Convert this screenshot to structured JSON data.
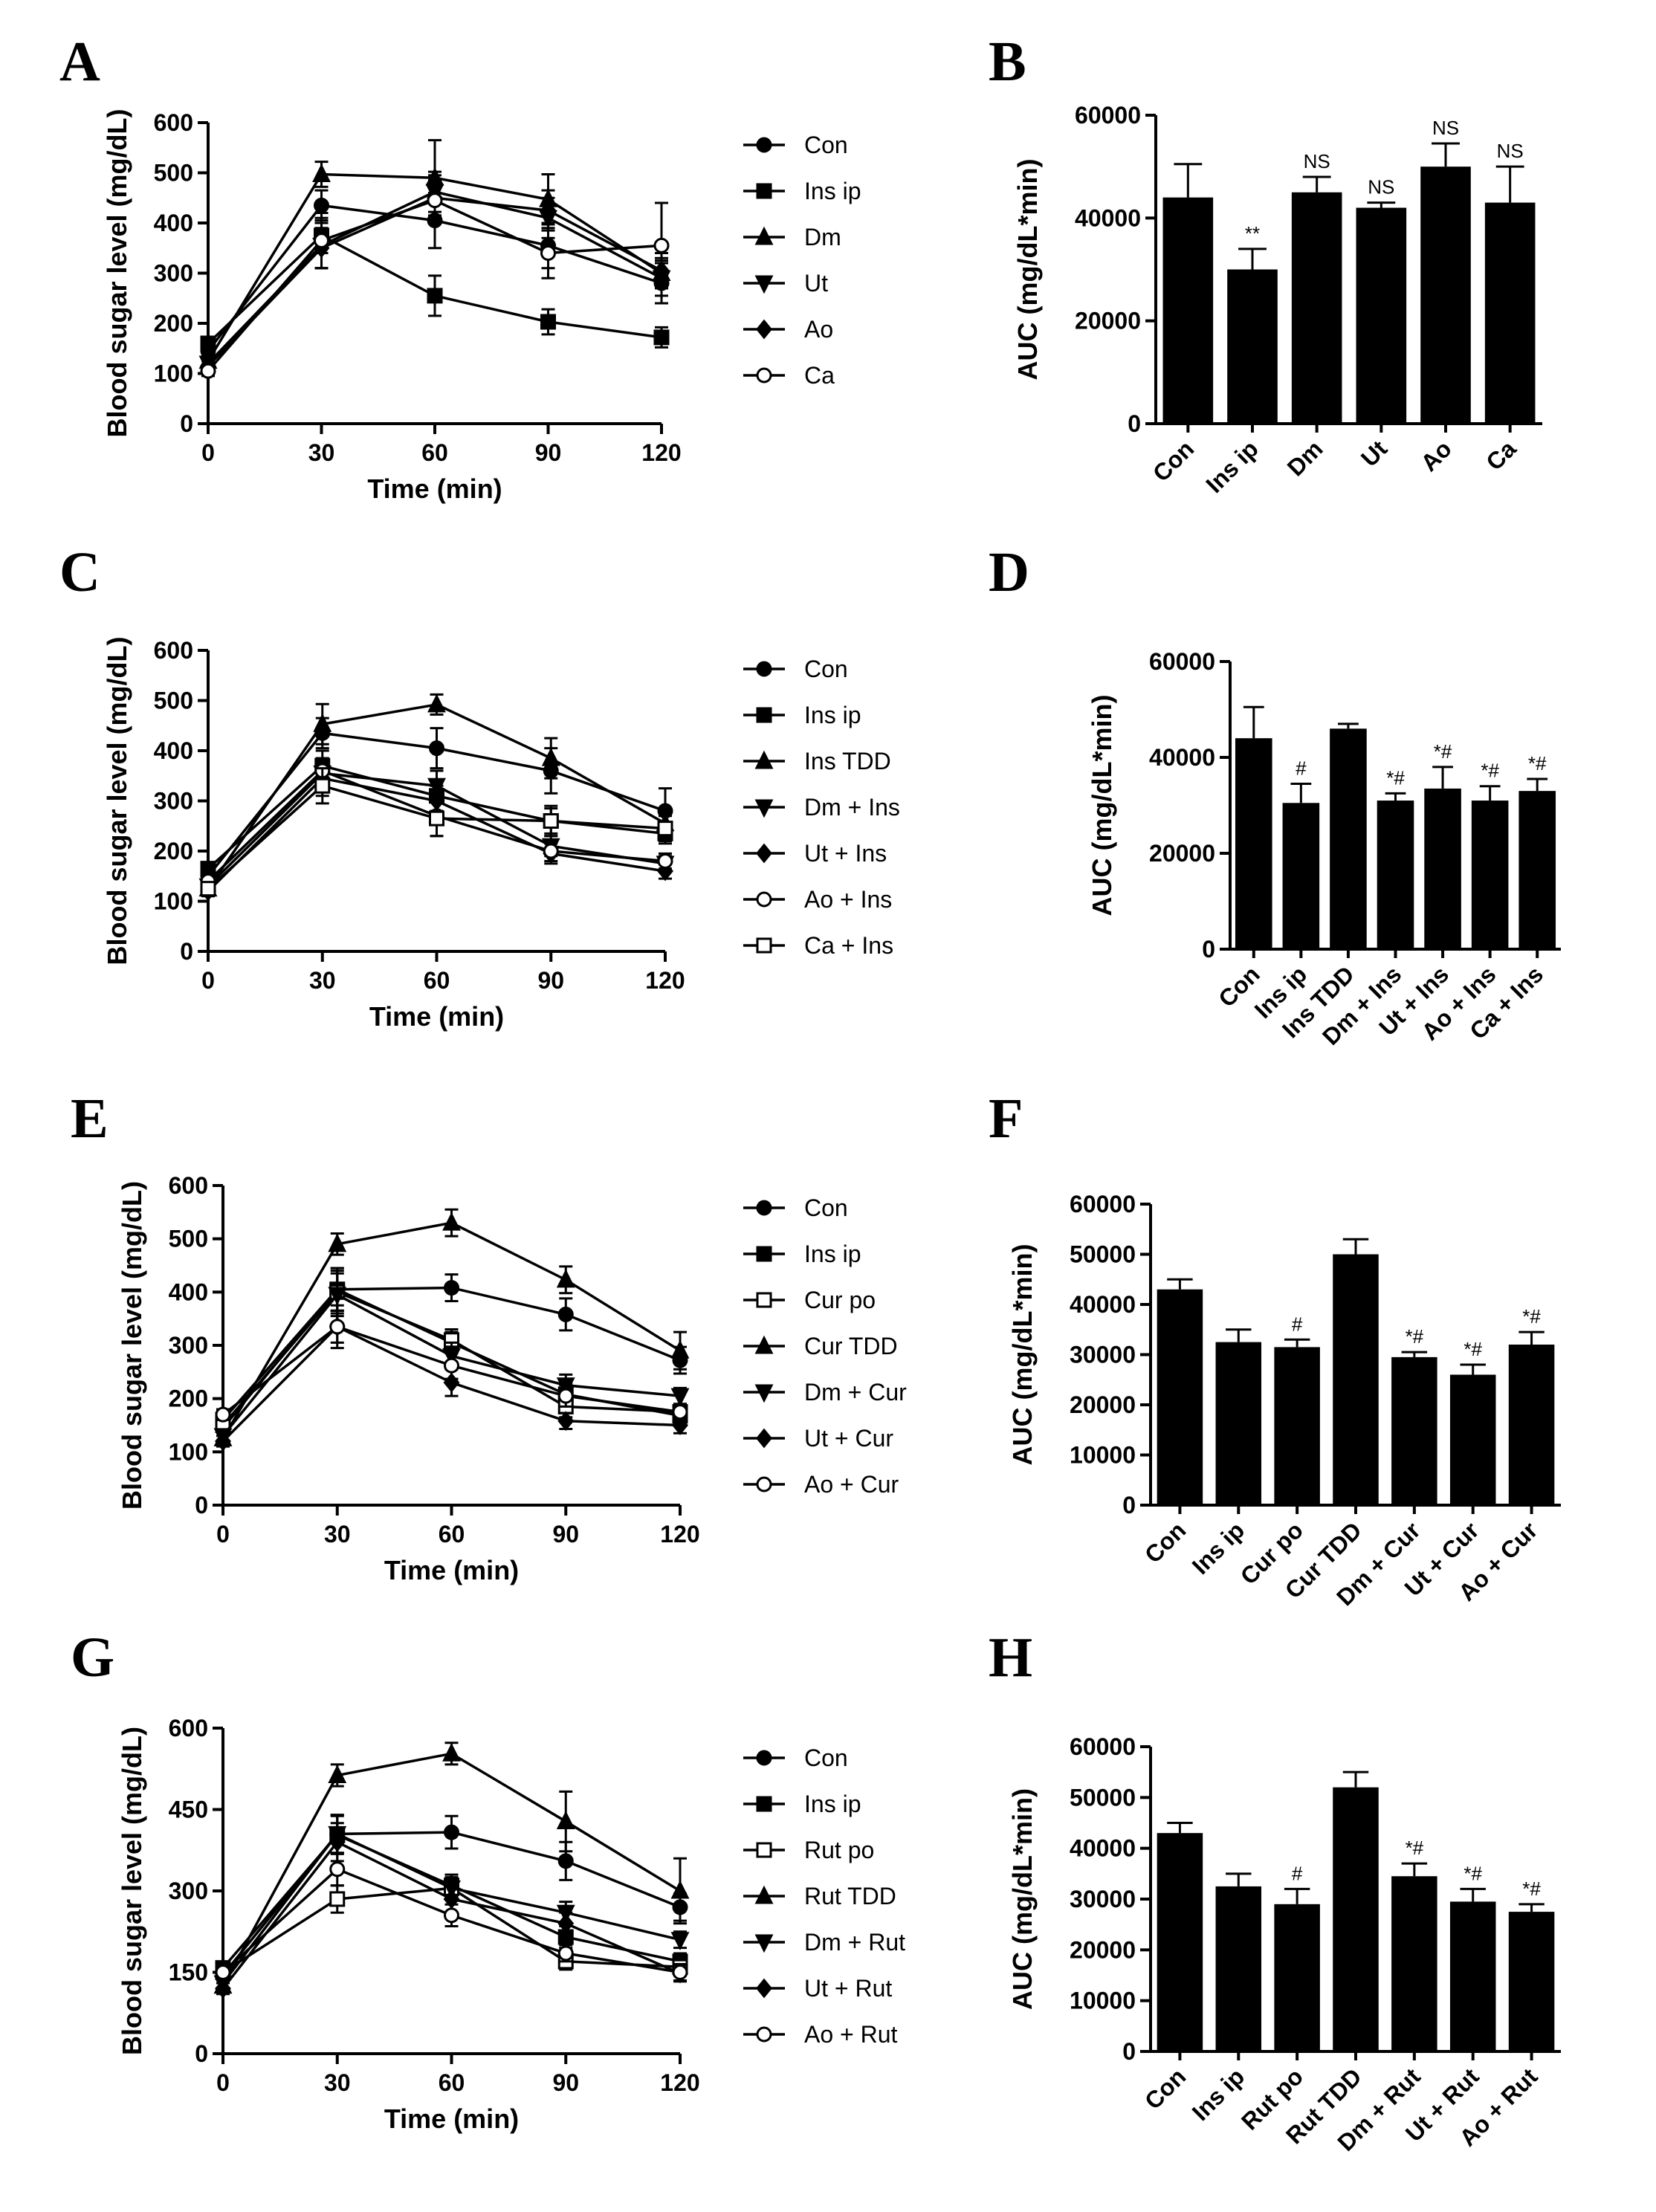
{
  "chart_data": [
    {
      "id": "A",
      "type": "line",
      "panel_label": "A",
      "xlabel": "Time (min)",
      "ylabel": "Blood sugar level (mg/dL)",
      "x": [
        0,
        30,
        60,
        90,
        120
      ],
      "xlim": [
        0,
        120
      ],
      "ylim": [
        0,
        600
      ],
      "xticks": [
        0,
        30,
        60,
        90,
        120
      ],
      "yticks": [
        0,
        100,
        200,
        300,
        400,
        500,
        600
      ],
      "series": [
        {
          "name": "Con",
          "marker": "circle",
          "values": [
            145,
            435,
            405,
            355,
            280
          ],
          "errors": [
            10,
            30,
            55,
            45,
            40
          ]
        },
        {
          "name": "Ins ip",
          "marker": "square",
          "values": [
            160,
            375,
            255,
            203,
            172
          ],
          "errors": [
            12,
            35,
            40,
            25,
            20
          ]
        },
        {
          "name": "Dm",
          "marker": "triangle-up",
          "values": [
            125,
            497,
            490,
            447,
            300
          ],
          "errors": [
            10,
            25,
            75,
            50,
            30
          ]
        },
        {
          "name": "Ut",
          "marker": "triangle-down",
          "values": [
            120,
            355,
            462,
            410,
            290
          ],
          "errors": [
            10,
            45,
            40,
            40,
            35
          ]
        },
        {
          "name": "Ao",
          "marker": "diamond",
          "values": [
            115,
            350,
            450,
            425,
            305
          ],
          "errors": [
            10,
            40,
            45,
            40,
            35
          ]
        },
        {
          "name": "Ca",
          "marker": "circle-open",
          "values": [
            105,
            365,
            445,
            340,
            355
          ],
          "errors": [
            10,
            55,
            40,
            50,
            85
          ]
        }
      ]
    },
    {
      "id": "B",
      "type": "bar",
      "panel_label": "B",
      "ylabel": "AUC (mg/dL*min)",
      "ylim": [
        0,
        60000
      ],
      "yticks": [
        0,
        20000,
        40000,
        60000
      ],
      "categories": [
        "Con",
        "Ins ip",
        "Dm",
        "Ut",
        "Ao",
        "Ca"
      ],
      "values": [
        44000,
        30000,
        45000,
        42000,
        50000,
        43000
      ],
      "errors": [
        6500,
        4000,
        3000,
        1000,
        4500,
        7000
      ],
      "annotations": [
        "",
        "**",
        "NS",
        "NS",
        "NS",
        "NS"
      ]
    },
    {
      "id": "C",
      "type": "line",
      "panel_label": "C",
      "xlabel": "Time (min)",
      "ylabel": "Blood sugar level (mg/dL)",
      "x": [
        0,
        30,
        60,
        90,
        120
      ],
      "xlim": [
        0,
        120
      ],
      "ylim": [
        0,
        600
      ],
      "xticks": [
        0,
        30,
        60,
        90,
        120
      ],
      "yticks": [
        0,
        100,
        200,
        300,
        400,
        500,
        600
      ],
      "series": [
        {
          "name": "Con",
          "marker": "circle",
          "values": [
            150,
            435,
            405,
            360,
            280
          ],
          "errors": [
            10,
            30,
            40,
            45,
            45
          ]
        },
        {
          "name": "Ins ip",
          "marker": "square",
          "values": [
            165,
            370,
            310,
            260,
            235
          ],
          "errors": [
            10,
            30,
            30,
            25,
            20
          ]
        },
        {
          "name": "Ins TDD",
          "marker": "triangle-up",
          "values": [
            125,
            453,
            492,
            385,
            255
          ],
          "errors": [
            10,
            40,
            20,
            40,
            25
          ]
        },
        {
          "name": "Dm + Ins",
          "marker": "triangle-down",
          "values": [
            130,
            355,
            330,
            210,
            175
          ],
          "errors": [
            10,
            30,
            30,
            20,
            15
          ]
        },
        {
          "name": "Ut + Ins",
          "marker": "diamond",
          "values": [
            120,
            345,
            300,
            195,
            160
          ],
          "errors": [
            10,
            35,
            30,
            20,
            15
          ]
        },
        {
          "name": "Ao + Ins",
          "marker": "circle-open",
          "values": [
            140,
            360,
            270,
            200,
            180
          ],
          "errors": [
            10,
            25,
            40,
            20,
            15
          ]
        },
        {
          "name": "Ca + Ins",
          "marker": "square-open",
          "values": [
            125,
            330,
            265,
            260,
            245
          ],
          "errors": [
            10,
            35,
            35,
            30,
            25
          ]
        }
      ]
    },
    {
      "id": "D",
      "type": "bar",
      "panel_label": "D",
      "ylabel": "AUC (mg/dL*min)",
      "ylim": [
        0,
        60000
      ],
      "yticks": [
        0,
        20000,
        40000,
        60000
      ],
      "categories": [
        "Con",
        "Ins ip",
        "Ins TDD",
        "Dm + Ins",
        "Ut + Ins",
        "Ao + Ins",
        "Ca + Ins"
      ],
      "values": [
        44000,
        30500,
        46000,
        31000,
        33500,
        31000,
        33000
      ],
      "errors": [
        6500,
        4000,
        1000,
        1500,
        4500,
        3000,
        2500
      ],
      "annotations": [
        "",
        "#",
        "",
        "*#",
        "*#",
        "*#",
        "*#"
      ]
    },
    {
      "id": "E",
      "type": "line",
      "panel_label": "E",
      "xlabel": "Time (min)",
      "ylabel": "Blood sugar level (mg/dL)",
      "x": [
        0,
        30,
        60,
        90,
        120
      ],
      "xlim": [
        0,
        120
      ],
      "ylim": [
        0,
        600
      ],
      "xticks": [
        0,
        30,
        60,
        90,
        120
      ],
      "yticks": [
        0,
        100,
        200,
        300,
        400,
        500,
        600
      ],
      "series": [
        {
          "name": "Con",
          "marker": "circle",
          "values": [
            145,
            405,
            408,
            358,
            272
          ],
          "errors": [
            10,
            40,
            25,
            30,
            25
          ]
        },
        {
          "name": "Ins ip",
          "marker": "square",
          "values": [
            160,
            405,
            305,
            208,
            168
          ],
          "errors": [
            10,
            40,
            20,
            20,
            15
          ]
        },
        {
          "name": "Cur po",
          "marker": "square-open",
          "values": [
            150,
            400,
            310,
            185,
            175
          ],
          "errors": [
            10,
            40,
            20,
            20,
            15
          ]
        },
        {
          "name": "Cur TDD",
          "marker": "triangle-up",
          "values": [
            125,
            490,
            530,
            423,
            290
          ],
          "errors": [
            10,
            20,
            25,
            25,
            35
          ]
        },
        {
          "name": "Dm + Cur",
          "marker": "triangle-down",
          "values": [
            130,
            395,
            280,
            225,
            205
          ],
          "errors": [
            10,
            40,
            25,
            20,
            15
          ]
        },
        {
          "name": "Ut + Cur",
          "marker": "diamond",
          "values": [
            120,
            335,
            230,
            158,
            150
          ],
          "errors": [
            10,
            30,
            25,
            15,
            15
          ]
        },
        {
          "name": "Ao + Cur",
          "marker": "circle-open",
          "values": [
            170,
            335,
            262,
            205,
            175
          ],
          "errors": [
            10,
            40,
            25,
            20,
            15
          ]
        }
      ]
    },
    {
      "id": "F",
      "type": "bar",
      "panel_label": "F",
      "ylabel": "AUC (mg/dL*min)",
      "ylim": [
        0,
        60000
      ],
      "yticks": [
        0,
        10000,
        20000,
        30000,
        40000,
        50000,
        60000
      ],
      "categories": [
        "Con",
        "Ins ip",
        "Cur po",
        "Cur TDD",
        "Dm + Cur",
        "Ut + Cur",
        "Ao + Cur"
      ],
      "values": [
        43000,
        32500,
        31500,
        50000,
        29500,
        26000,
        32000
      ],
      "errors": [
        2000,
        2500,
        1500,
        3000,
        1000,
        2000,
        2500
      ],
      "annotations": [
        "",
        "",
        "#",
        "",
        "*#",
        "*#",
        "*#"
      ]
    },
    {
      "id": "G",
      "type": "line",
      "panel_label": "G",
      "xlabel": "Time (min)",
      "ylabel": "Blood sugar level (mg/dL)",
      "x": [
        0,
        30,
        60,
        90,
        120
      ],
      "xlim": [
        0,
        120
      ],
      "ylim": [
        0,
        600
      ],
      "xticks": [
        0,
        30,
        60,
        90,
        120
      ],
      "yticks": [
        0,
        150,
        300,
        450,
        600
      ],
      "series": [
        {
          "name": "Con",
          "marker": "circle",
          "values": [
            145,
            405,
            408,
            355,
            270
          ],
          "errors": [
            10,
            35,
            30,
            35,
            25
          ]
        },
        {
          "name": "Ins ip",
          "marker": "square",
          "values": [
            158,
            403,
            310,
            215,
            170
          ],
          "errors": [
            10,
            35,
            20,
            20,
            15
          ]
        },
        {
          "name": "Rut po",
          "marker": "square-open",
          "values": [
            150,
            285,
            305,
            170,
            160
          ],
          "errors": [
            10,
            25,
            20,
            15,
            15
          ]
        },
        {
          "name": "Rut TDD",
          "marker": "triangle-up",
          "values": [
            125,
            513,
            553,
            428,
            300
          ],
          "errors": [
            10,
            20,
            20,
            55,
            60
          ]
        },
        {
          "name": "Dm + Rut",
          "marker": "triangle-down",
          "values": [
            130,
            405,
            305,
            260,
            210
          ],
          "errors": [
            10,
            35,
            20,
            20,
            15
          ]
        },
        {
          "name": "Ut + Rut",
          "marker": "diamond",
          "values": [
            120,
            390,
            285,
            240,
            148
          ],
          "errors": [
            10,
            35,
            25,
            20,
            15
          ]
        },
        {
          "name": "Ao + Rut",
          "marker": "circle-open",
          "values": [
            150,
            340,
            255,
            185,
            150
          ],
          "errors": [
            10,
            30,
            20,
            15,
            15
          ]
        }
      ]
    },
    {
      "id": "H",
      "type": "bar",
      "panel_label": "H",
      "ylabel": "AUC (mg/dL*min)",
      "ylim": [
        0,
        60000
      ],
      "yticks": [
        0,
        10000,
        20000,
        30000,
        40000,
        50000,
        60000
      ],
      "categories": [
        "Con",
        "Ins ip",
        "Rut po",
        "Rut TDD",
        "Dm + Rut",
        "Ut + Rut",
        "Ao + Rut"
      ],
      "values": [
        43000,
        32500,
        29000,
        52000,
        34500,
        29500,
        27500
      ],
      "errors": [
        2000,
        2500,
        3000,
        3000,
        2500,
        2500,
        1500
      ],
      "annotations": [
        "",
        "",
        "#",
        "",
        "*#",
        "*#",
        "*#"
      ]
    }
  ]
}
